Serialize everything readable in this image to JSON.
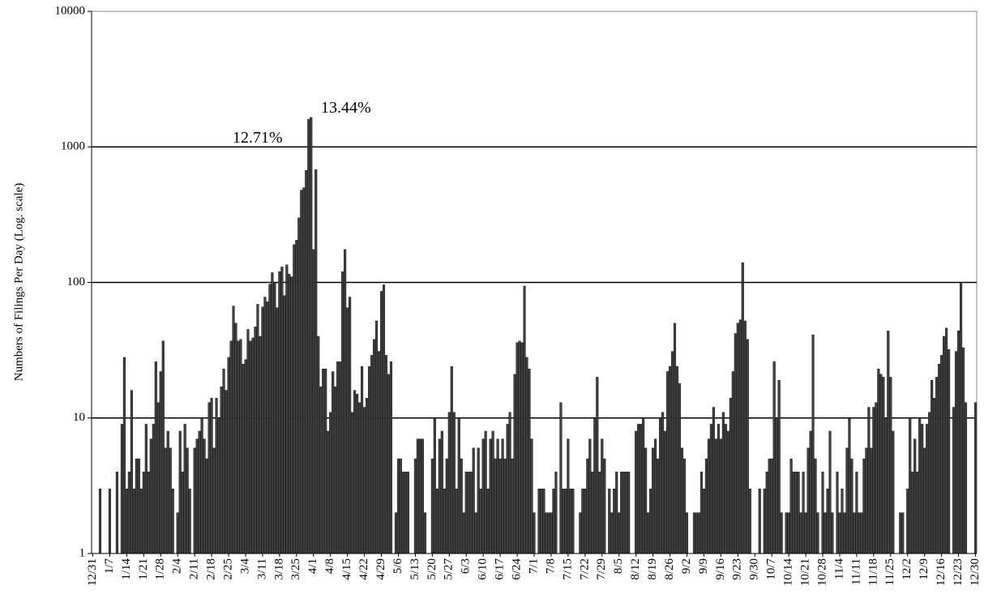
{
  "chart_data": {
    "type": "bar",
    "log_scale": true,
    "grid": true,
    "color": "#404040",
    "y_label": "Numbers of Filings Per Day (Log. scale)",
    "annotations": [
      "12.71%",
      "13.44%"
    ],
    "ylim": [
      1,
      10000
    ],
    "yticks": [
      1,
      10,
      100,
      1000,
      10000
    ],
    "categories": [
      "12/31",
      null,
      null,
      null,
      null,
      null,
      null,
      "1/7",
      null,
      null,
      null,
      null,
      null,
      null,
      "1/14",
      null,
      null,
      null,
      null,
      null,
      null,
      "1/21",
      null,
      null,
      null,
      null,
      null,
      null,
      "1/28",
      null,
      null,
      null,
      null,
      null,
      null,
      "2/4",
      null,
      null,
      null,
      null,
      null,
      null,
      "2/11",
      null,
      null,
      null,
      null,
      null,
      null,
      "2/18",
      null,
      null,
      null,
      null,
      null,
      null,
      "2/25",
      null,
      null,
      null,
      null,
      null,
      null,
      "3/4",
      null,
      null,
      null,
      null,
      null,
      null,
      "3/11",
      null,
      null,
      null,
      null,
      null,
      null,
      "3/18",
      null,
      null,
      null,
      null,
      null,
      null,
      "3/25",
      null,
      null,
      null,
      null,
      null,
      null,
      "4/1",
      null,
      null,
      null,
      null,
      null,
      null,
      "4/8",
      null,
      null,
      null,
      null,
      null,
      null,
      "4/15",
      null,
      null,
      null,
      null,
      null,
      null,
      "4/22",
      null,
      null,
      null,
      null,
      null,
      null,
      "4/29",
      null,
      null,
      null,
      null,
      null,
      null,
      "5/6",
      null,
      null,
      null,
      null,
      null,
      null,
      "5/13",
      null,
      null,
      null,
      null,
      null,
      null,
      "5/20",
      null,
      null,
      null,
      null,
      null,
      null,
      "5/27",
      null,
      null,
      null,
      null,
      null,
      null,
      "6/3",
      null,
      null,
      null,
      null,
      null,
      null,
      "6/10",
      null,
      null,
      null,
      null,
      null,
      null,
      "6/17",
      null,
      null,
      null,
      null,
      null,
      null,
      "6/24",
      null,
      null,
      null,
      null,
      null,
      null,
      "7/1",
      null,
      null,
      null,
      null,
      null,
      null,
      "7/8",
      null,
      null,
      null,
      null,
      null,
      null,
      "7/15",
      null,
      null,
      null,
      null,
      null,
      null,
      "7/22",
      null,
      null,
      null,
      null,
      null,
      null,
      "7/29",
      null,
      null,
      null,
      null,
      null,
      null,
      "8/5",
      null,
      null,
      null,
      null,
      null,
      null,
      "8/12",
      null,
      null,
      null,
      null,
      null,
      null,
      "8/19",
      null,
      null,
      null,
      null,
      null,
      null,
      "8/26",
      null,
      null,
      null,
      null,
      null,
      null,
      "9/2",
      null,
      null,
      null,
      null,
      null,
      null,
      "9/9",
      null,
      null,
      null,
      null,
      null,
      null,
      "9/16",
      null,
      null,
      null,
      null,
      null,
      null,
      "9/23",
      null,
      null,
      null,
      null,
      null,
      null,
      "9/30",
      null,
      null,
      null,
      null,
      null,
      null,
      "10/7",
      null,
      null,
      null,
      null,
      null,
      null,
      "10/14",
      null,
      null,
      null,
      null,
      null,
      null,
      "10/21",
      null,
      null,
      null,
      null,
      null,
      null,
      "10/28",
      null,
      null,
      null,
      null,
      null,
      null,
      "11/4",
      null,
      null,
      null,
      null,
      null,
      null,
      "11/11",
      null,
      null,
      null,
      null,
      null,
      null,
      "11/18",
      null,
      null,
      null,
      null,
      null,
      null,
      "11/25",
      null,
      null,
      null,
      null,
      null,
      null,
      "12/2",
      null,
      null,
      null,
      null,
      null,
      null,
      "12/9",
      null,
      null,
      null,
      null,
      null,
      null,
      "12/16",
      null,
      null,
      null,
      null,
      null,
      null,
      "12/23",
      null,
      null,
      null,
      null,
      null,
      null,
      "12/30"
    ],
    "values": [
      null,
      null,
      null,
      3,
      null,
      null,
      null,
      3,
      null,
      null,
      4,
      null,
      9,
      28,
      3,
      4,
      16,
      3,
      5,
      5,
      3,
      4,
      9,
      4,
      7,
      9,
      26,
      13,
      22,
      37,
      6,
      8,
      6,
      3,
      null,
      2,
      8,
      4,
      9,
      6,
      3,
      null,
      6,
      7,
      8,
      10,
      7,
      5,
      13,
      14,
      6,
      14,
      10,
      17,
      23,
      16,
      28,
      37,
      67,
      50,
      37,
      38,
      25,
      27,
      45,
      37,
      39,
      47,
      69,
      40,
      66,
      78,
      72,
      97,
      118,
      100,
      65,
      120,
      130,
      80,
      135,
      115,
      110,
      190,
      205,
      300,
      480,
      500,
      670,
      1600,
      1650,
      175,
      680,
      40,
      17,
      23,
      23,
      8,
      11,
      22,
      17,
      26,
      26,
      120,
      175,
      65,
      78,
      11,
      16,
      15,
      13,
      24,
      12,
      14,
      24,
      29,
      38,
      52,
      31,
      86,
      96,
      29,
      21,
      26,
      null,
      2,
      5,
      5,
      4,
      4,
      4,
      null,
      null,
      5,
      7,
      7,
      7,
      2,
      null,
      null,
      5,
      10,
      3,
      7,
      8,
      3,
      5,
      11,
      24,
      11,
      3,
      10,
      5,
      2,
      4,
      4,
      4,
      6,
      2,
      6,
      3,
      7,
      8,
      3,
      7,
      8,
      5,
      7,
      5,
      7,
      5,
      9,
      11,
      5,
      21,
      36,
      37,
      36,
      94,
      28,
      23,
      7,
      2,
      null,
      3,
      3,
      3,
      2,
      2,
      2,
      3,
      4,
      null,
      13,
      3,
      3,
      7,
      3,
      3,
      null,
      null,
      2,
      3,
      3,
      5,
      7,
      4,
      10,
      20,
      4,
      7,
      5,
      null,
      3,
      2,
      3,
      4,
      2,
      4,
      4,
      4,
      4,
      null,
      null,
      8,
      9,
      9,
      10,
      6,
      2,
      3,
      6,
      7,
      5,
      10,
      11,
      8,
      22,
      24,
      31,
      50,
      24,
      18,
      6,
      5,
      2,
      null,
      null,
      2,
      2,
      2,
      4,
      3,
      5,
      7,
      9,
      12,
      7,
      9,
      7,
      11,
      9,
      8,
      14,
      22,
      42,
      50,
      53,
      140,
      52,
      38,
      3,
      null,
      null,
      null,
      3,
      null,
      3,
      4,
      5,
      5,
      26,
      10,
      19,
      2,
      null,
      2,
      2,
      5,
      4,
      4,
      4,
      2,
      4,
      2,
      6,
      8,
      41,
      5,
      2,
      null,
      4,
      2,
      3,
      8,
      2,
      null,
      4,
      2,
      3,
      2,
      6,
      10,
      5,
      2,
      4,
      2,
      2,
      5,
      6,
      12,
      6,
      12,
      13,
      23,
      21,
      20,
      10,
      44,
      20,
      8,
      null,
      null,
      2,
      2,
      null,
      3,
      10,
      4,
      7,
      4,
      10,
      9,
      6,
      9,
      11,
      19,
      14,
      20,
      25,
      29,
      40,
      46,
      32,
      null,
      12,
      31,
      44,
      100,
      33,
      13,
      null,
      null,
      null,
      13
    ]
  }
}
